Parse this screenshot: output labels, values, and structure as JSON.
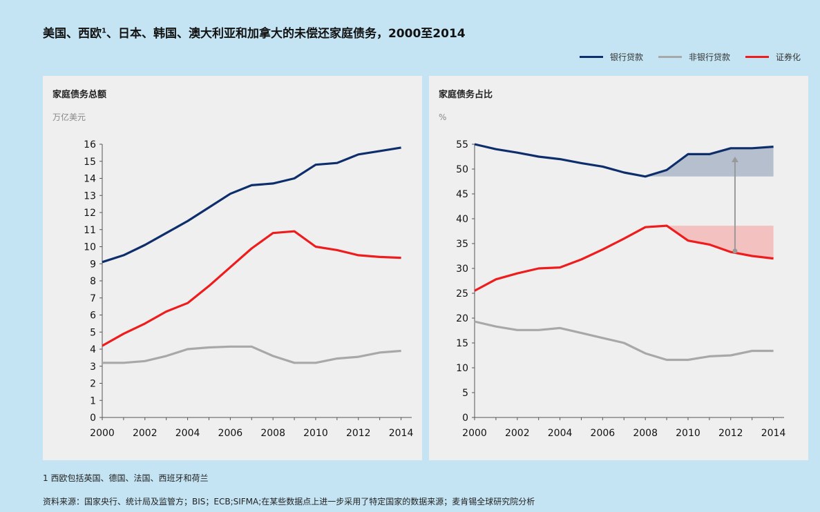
{
  "title": {
    "main": "美国、西欧",
    "sup": "1",
    "rest": "、日本、韩国、澳大利亚和加拿大的未偿还家庭债务，2000至2014"
  },
  "legend": [
    {
      "label": "银行贷款",
      "color": "#0d2d6b"
    },
    {
      "label": "非银行贷款",
      "color": "#a8a8a8"
    },
    {
      "label": "证券化",
      "color": "#ee1c1c"
    }
  ],
  "footnote": "1 西欧包括英国、德国、法国、西班牙和荷兰",
  "source": "资料来源：国家央行、统计局及监管方；BIS；ECB;SIFMA;在某些数据点上进一步采用了特定国家的数据来源；麦肯锡全球研究院分析",
  "chart_data": [
    {
      "type": "line",
      "title": "家庭债务总额",
      "ylabel": "万亿美元",
      "ylim": [
        0,
        16
      ],
      "yticks": [
        "0",
        "1",
        "2",
        "3",
        "4",
        "5",
        "6",
        "7",
        "8",
        "9",
        "10",
        "11",
        "12",
        "13",
        "14",
        "15",
        "16"
      ],
      "xlim": [
        2000,
        2014.5
      ],
      "xticks": [
        "2000",
        "2002",
        "2004",
        "2006",
        "2008",
        "2010",
        "2012",
        "2014"
      ],
      "series": [
        {
          "name": "银行贷款",
          "color": "#0d2d6b",
          "x": [
            2000,
            2001,
            2002,
            2003,
            2004,
            2005,
            2006,
            2007,
            2008,
            2009,
            2010,
            2011,
            2012,
            2013,
            2014
          ],
          "values": [
            9.1,
            9.5,
            10.1,
            10.8,
            11.5,
            12.3,
            13.1,
            13.6,
            13.7,
            14.0,
            14.8,
            14.9,
            15.4,
            15.6,
            15.8
          ]
        },
        {
          "name": "证券化",
          "color": "#ee1c1c",
          "x": [
            2000,
            2001,
            2002,
            2003,
            2004,
            2005,
            2006,
            2007,
            2008,
            2009,
            2010,
            2011,
            2012,
            2013,
            2014
          ],
          "values": [
            4.2,
            4.9,
            5.5,
            6.2,
            6.7,
            7.7,
            8.8,
            9.9,
            10.8,
            10.9,
            10.0,
            9.8,
            9.5,
            9.4,
            9.35
          ]
        },
        {
          "name": "非银行贷款",
          "color": "#a8a8a8",
          "x": [
            2000,
            2001,
            2002,
            2003,
            2004,
            2005,
            2006,
            2007,
            2008,
            2009,
            2010,
            2011,
            2012,
            2013,
            2014
          ],
          "values": [
            3.2,
            3.2,
            3.3,
            3.6,
            4.0,
            4.1,
            4.15,
            4.15,
            3.6,
            3.2,
            3.2,
            3.45,
            3.55,
            3.8,
            3.9
          ]
        }
      ]
    },
    {
      "type": "line",
      "title": "家庭债务占比",
      "ylabel": "%",
      "ylim": [
        0,
        55
      ],
      "yticks": [
        "0",
        "5",
        "10",
        "15",
        "20",
        "25",
        "30",
        "35",
        "40",
        "45",
        "50",
        "55"
      ],
      "xlim": [
        2000,
        2014.5
      ],
      "xticks": [
        "2000",
        "2002",
        "2004",
        "2006",
        "2008",
        "2010",
        "2012",
        "2014"
      ],
      "series": [
        {
          "name": "银行贷款",
          "color": "#0d2d6b",
          "x": [
            2000,
            2001,
            2002,
            2003,
            2004,
            2005,
            2006,
            2007,
            2008,
            2009,
            2010,
            2011,
            2012,
            2013,
            2014
          ],
          "values": [
            55.0,
            54.0,
            53.3,
            52.5,
            52.0,
            51.2,
            50.5,
            49.3,
            48.5,
            49.8,
            53.0,
            53.0,
            54.2,
            54.2,
            54.5
          ]
        },
        {
          "name": "证券化",
          "color": "#ee1c1c",
          "x": [
            2000,
            2001,
            2002,
            2003,
            2004,
            2005,
            2006,
            2007,
            2008,
            2009,
            2010,
            2011,
            2012,
            2013,
            2014
          ],
          "values": [
            25.5,
            27.8,
            29.0,
            30.0,
            30.2,
            31.8,
            33.8,
            36.0,
            38.3,
            38.6,
            35.6,
            34.8,
            33.3,
            32.5,
            32.0
          ]
        },
        {
          "name": "非银行贷款",
          "color": "#a8a8a8",
          "x": [
            2000,
            2001,
            2002,
            2003,
            2004,
            2005,
            2006,
            2007,
            2008,
            2009,
            2010,
            2011,
            2012,
            2013,
            2014
          ],
          "values": [
            19.3,
            18.3,
            17.6,
            17.6,
            18.0,
            17.0,
            16.0,
            15.0,
            12.9,
            11.6,
            11.6,
            12.3,
            12.5,
            13.4,
            13.4
          ]
        }
      ],
      "bands": [
        {
          "color": "#aab6c8",
          "x_start": 2008,
          "x_end": 2014,
          "ref": 48.5,
          "series": "银行贷款"
        },
        {
          "color": "#f4b8b8",
          "x_start": 2009,
          "x_end": 2014,
          "ref": 38.6,
          "series": "证券化"
        }
      ],
      "arrow": {
        "x": 2012.2,
        "from": 33.5,
        "to": 52.5
      }
    }
  ]
}
